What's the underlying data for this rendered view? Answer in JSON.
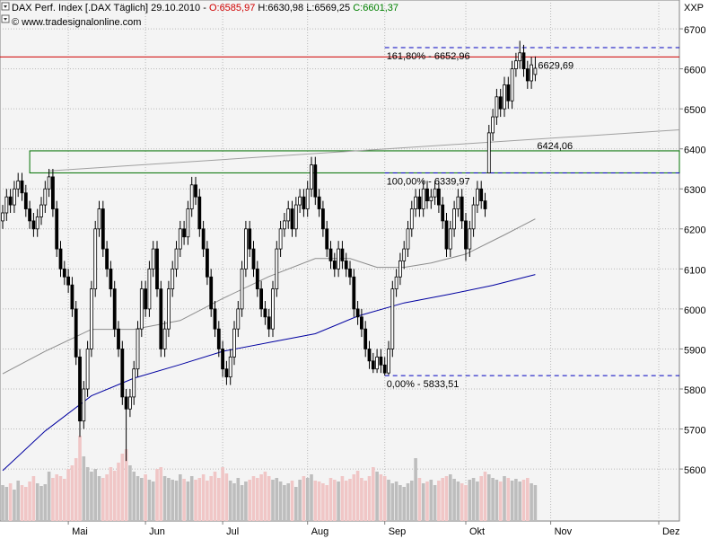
{
  "chart_data": {
    "type": "candlestick",
    "title": "DAX Perf. Index [.DAX Täglich]",
    "date": "29.10.2010",
    "separator": "-",
    "ohlc_labels": [
      "O:6585,97",
      "H:6630,98",
      "L:6569,25",
      "C:6601,37"
    ],
    "ohlc_colors": [
      "#d00000",
      "#000000",
      "#000000",
      "#008000"
    ],
    "source": "© www.tradesignalonline.com",
    "y_axis_label": "XXP",
    "candle_color": "#000000",
    "open": [
      6220,
      6240,
      6280,
      6260,
      6300,
      6320,
      6290,
      6250,
      6220,
      6200,
      6230,
      6260,
      6300,
      6330,
      6250,
      6150,
      6100,
      6080,
      6060,
      6000,
      5880,
      5720,
      5800,
      5900,
      6050,
      6200,
      6250,
      6150,
      6100,
      6050,
      5950,
      5900,
      5780,
      5750,
      5780,
      5850,
      5950,
      6050,
      6000,
      6100,
      6150,
      6050,
      5900,
      5950,
      6050,
      6100,
      6150,
      6200,
      6180,
      6250,
      6310,
      6280,
      6200,
      6150,
      6080,
      6000,
      5950,
      5900,
      5850,
      5830,
      5880,
      5950,
      6000,
      6100,
      6200,
      6150,
      6100,
      6050,
      6000,
      5980,
      5950,
      6050,
      6150,
      6200,
      6220,
      6250,
      6200,
      6260,
      6280,
      6250,
      6300,
      6360,
      6280,
      6250,
      6200,
      6150,
      6120,
      6100,
      6150,
      6120,
      6100,
      6080,
      6000,
      5980,
      5950,
      5900,
      5870,
      5850,
      5880,
      5860,
      5840,
      5900,
      6050,
      6080,
      6120,
      6150,
      6200,
      6250,
      6280,
      6250,
      6300,
      6270,
      6280,
      6300,
      6260,
      6220,
      6150,
      6200,
      6250,
      6280,
      6220,
      6150,
      6200,
      6260,
      6300,
      6270,
      6340,
      6440,
      6480,
      6530,
      6500,
      6560,
      6520,
      6600,
      6620,
      6640,
      6600,
      6570,
      6585.97
    ],
    "high": [
      6260,
      6300,
      6300,
      6320,
      6340,
      6340,
      6310,
      6270,
      6240,
      6250,
      6280,
      6320,
      6350,
      6350,
      6270,
      6170,
      6120,
      6100,
      6080,
      6020,
      5900,
      5820,
      5920,
      6070,
      6220,
      6270,
      6270,
      6170,
      6120,
      6070,
      5970,
      5920,
      5800,
      5800,
      5870,
      5970,
      6070,
      6070,
      6120,
      6170,
      6170,
      6070,
      5970,
      6070,
      6120,
      6170,
      6220,
      6220,
      6270,
      6330,
      6330,
      6300,
      6220,
      6170,
      6100,
      6020,
      5970,
      5920,
      5870,
      5900,
      5970,
      6020,
      6120,
      6220,
      6220,
      6170,
      6120,
      6070,
      6020,
      6000,
      6070,
      6170,
      6220,
      6240,
      6270,
      6270,
      6280,
      6300,
      6300,
      6320,
      6380,
      6380,
      6300,
      6270,
      6220,
      6170,
      6140,
      6170,
      6170,
      6140,
      6120,
      6100,
      6020,
      6000,
      5970,
      5920,
      5890,
      5900,
      5900,
      5880,
      5920,
      6070,
      6100,
      6140,
      6170,
      6220,
      6270,
      6300,
      6300,
      6320,
      6320,
      6300,
      6320,
      6320,
      6280,
      6240,
      6220,
      6270,
      6300,
      6300,
      6240,
      6220,
      6280,
      6320,
      6320,
      6290,
      6460,
      6500,
      6550,
      6550,
      6580,
      6580,
      6620,
      6640,
      6670,
      6660,
      6620,
      6630,
      6630.98
    ],
    "low": [
      6200,
      6220,
      6240,
      6240,
      6280,
      6270,
      6230,
      6200,
      6180,
      6180,
      6210,
      6240,
      6280,
      6230,
      6130,
      6080,
      6060,
      6040,
      5980,
      5860,
      5680,
      5700,
      5780,
      5880,
      6030,
      6180,
      6130,
      6080,
      6030,
      5930,
      5880,
      5760,
      5620,
      5730,
      5760,
      5830,
      5930,
      5980,
      5980,
      6080,
      6030,
      5880,
      5880,
      5930,
      6030,
      6080,
      6130,
      6160,
      6160,
      6230,
      6260,
      6180,
      6130,
      6060,
      5980,
      5930,
      5880,
      5830,
      5810,
      5810,
      5860,
      5930,
      5980,
      6080,
      6130,
      6080,
      6030,
      5980,
      5960,
      5930,
      5930,
      6030,
      6130,
      6180,
      6200,
      6180,
      6180,
      6240,
      6230,
      6230,
      6280,
      6260,
      6230,
      6180,
      6130,
      6100,
      6080,
      6080,
      6100,
      6080,
      6060,
      5980,
      5960,
      5930,
      5880,
      5850,
      5840,
      5840,
      5840,
      5833.51,
      5835,
      5880,
      6030,
      6060,
      6100,
      6130,
      6180,
      6230,
      6230,
      6230,
      6250,
      6250,
      6260,
      6240,
      6200,
      6130,
      6130,
      6180,
      6230,
      6200,
      6120,
      6130,
      6180,
      6240,
      6250,
      6230,
      6339.97,
      6420,
      6460,
      6480,
      6480,
      6500,
      6500,
      6580,
      6600,
      6580,
      6550,
      6550,
      6569.25
    ],
    "close": [
      6240,
      6280,
      6260,
      6300,
      6320,
      6290,
      6250,
      6220,
      6200,
      6230,
      6260,
      6300,
      6330,
      6250,
      6150,
      6100,
      6080,
      6060,
      6000,
      5880,
      5720,
      5800,
      5900,
      6050,
      6200,
      6250,
      6150,
      6100,
      6050,
      5950,
      5900,
      5780,
      5750,
      5780,
      5850,
      5950,
      6050,
      6000,
      6100,
      6150,
      6050,
      5900,
      5950,
      6050,
      6100,
      6150,
      6200,
      6180,
      6250,
      6310,
      6280,
      6200,
      6150,
      6080,
      6000,
      5950,
      5900,
      5850,
      5830,
      5880,
      5950,
      6000,
      6100,
      6200,
      6150,
      6100,
      6050,
      6000,
      5980,
      5950,
      6050,
      6150,
      6200,
      6220,
      6250,
      6200,
      6260,
      6280,
      6250,
      6300,
      6360,
      6280,
      6250,
      6200,
      6150,
      6120,
      6100,
      6150,
      6120,
      6100,
      6080,
      6000,
      5980,
      5950,
      5900,
      5870,
      5850,
      5880,
      5860,
      5840,
      5900,
      6050,
      6080,
      6120,
      6150,
      6200,
      6250,
      6280,
      6250,
      6300,
      6270,
      6280,
      6300,
      6260,
      6220,
      6150,
      6200,
      6250,
      6280,
      6220,
      6150,
      6200,
      6260,
      6300,
      6270,
      6250,
      6440,
      6480,
      6530,
      6500,
      6560,
      6520,
      6600,
      6620,
      6640,
      6600,
      6570,
      6610,
      6601.37
    ],
    "volume": [
      40,
      38,
      42,
      35,
      45,
      40,
      38,
      44,
      50,
      42,
      39,
      41,
      55,
      48,
      52,
      50,
      47,
      58,
      62,
      70,
      95,
      72,
      60,
      55,
      58,
      50,
      48,
      52,
      60,
      56,
      65,
      75,
      80,
      62,
      55,
      50,
      48,
      52,
      46,
      44,
      58,
      60,
      50,
      48,
      46,
      45,
      52,
      47,
      44,
      50,
      46,
      48,
      52,
      45,
      50,
      55,
      48,
      60,
      53,
      45,
      42,
      48,
      40,
      44,
      46,
      50,
      48,
      52,
      55,
      50,
      46,
      48,
      44,
      40,
      42,
      45,
      38,
      46,
      50,
      48,
      52,
      45,
      44,
      42,
      40,
      48,
      46,
      44,
      50,
      45,
      47,
      52,
      56,
      48,
      45,
      50,
      60,
      55,
      52,
      50,
      46,
      42,
      44,
      40,
      38,
      42,
      45,
      70,
      48,
      42,
      44,
      46,
      40,
      45,
      48,
      50,
      52,
      47,
      44,
      42,
      40,
      46,
      48,
      44,
      50,
      55,
      52,
      48,
      46,
      44,
      50,
      48,
      45,
      47,
      44,
      46,
      48,
      42,
      40
    ],
    "volume_lim": [
      0,
      100
    ],
    "up_volume_color": "#bdbdbd",
    "down_volume_color": "#f0c6c6",
    "xlim": [
      -0.7,
      175.35
    ],
    "xticks": [
      {
        "value": 17,
        "label": "Mai"
      },
      {
        "value": 37,
        "label": "Jun"
      },
      {
        "value": 57,
        "label": "Jul"
      },
      {
        "value": 79,
        "label": "Aug"
      },
      {
        "value": 99,
        "label": "Sep"
      },
      {
        "value": 120,
        "label": "Okt"
      },
      {
        "value": 142,
        "label": "Nov"
      },
      {
        "value": 170,
        "label": "Dez"
      }
    ],
    "ylim": [
      5470,
      6772
    ],
    "yticks": [
      5600,
      5700,
      5800,
      5900,
      6000,
      6100,
      6200,
      6300,
      6400,
      6500,
      6600,
      6700
    ],
    "grid": true,
    "lines": [
      {
        "color": "#8c8c8c",
        "x": [
          0,
          11,
          23,
          34,
          46,
          57,
          69,
          81,
          90,
          97,
          104,
          111,
          120,
          130,
          138
        ],
        "values": [
          5838,
          5894,
          5949,
          5949,
          5971,
          6026,
          6081,
          6126,
          6126,
          6104,
          6104,
          6115,
          6137,
          6185,
          6225
        ]
      },
      {
        "color": "#0000a0",
        "x": [
          0,
          11,
          23,
          34,
          46,
          57,
          69,
          81,
          92,
          104,
          116,
          127,
          138
        ],
        "values": [
          5596,
          5695,
          5783,
          5827,
          5861,
          5894,
          5916,
          5938,
          5982,
          6015,
          6037,
          6059,
          6086
        ]
      }
    ],
    "levels": [
      {
        "value": 6629.69,
        "label": "6629,69",
        "color": "#d00000",
        "dashed": false,
        "start": -0.7
      },
      {
        "value": 6652.96,
        "label": "161,80% - 6652,96",
        "color": "#0000c0",
        "dashed": true,
        "start": 99
      },
      {
        "value": 6339.97,
        "label": "100,00% - 6339,97",
        "color": "#0000c0",
        "dashed": true,
        "start": 99
      },
      {
        "value": 5833.51,
        "label": "0,00% - 5833,51",
        "color": "#0000c0",
        "dashed": true,
        "start": 99
      }
    ],
    "zone": {
      "start": 7,
      "from": 6340,
      "to": 6395,
      "color": "#007000"
    },
    "trendline": {
      "x": [
        12,
        138
      ],
      "values": [
        6345,
        6424.06
      ],
      "value_label": "6424,06",
      "color": "#a0a0a0"
    }
  }
}
